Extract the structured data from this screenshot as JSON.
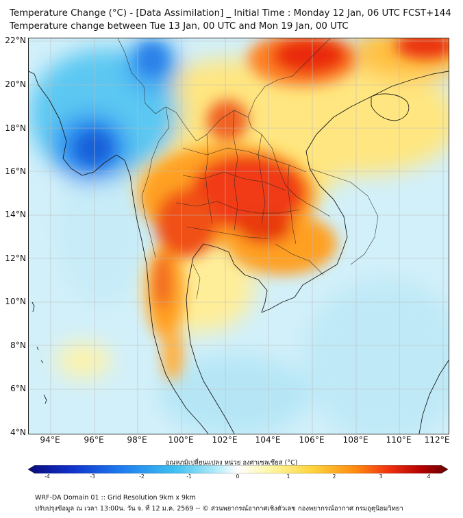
{
  "header": {
    "title_line1": "Temperature Change (°C) - [Data Assimilation] _ Initial Time : Monday 12 Jan, 06 UTC FCST+144",
    "title_line2": "Temperature change between Tue 13 Jan, 00 UTC and Mon 19 Jan, 00 UTC"
  },
  "axes": {
    "lat_labels": [
      "22°N",
      "20°N",
      "18°N",
      "16°N",
      "14°N",
      "12°N",
      "10°N",
      "8°N",
      "6°N",
      "4°N"
    ],
    "lon_labels": [
      "94°E",
      "96°E",
      "98°E",
      "100°E",
      "102°E",
      "104°E",
      "106°E",
      "108°E",
      "110°E",
      "112°E"
    ]
  },
  "colorbar": {
    "title": "อุณหภูมิเปลี่ยนแปลง หน่วย องศาเซลเซียส (°C)",
    "ticks": [
      "-4",
      "-3",
      "-2",
      "-1",
      "0",
      "1",
      "2",
      "3",
      "4"
    ],
    "colors": {
      "cold_extreme": "#0a0a7a",
      "cold": "#1e7bf0",
      "cool": "#8fdff5",
      "neutral": "#ffffff",
      "warm": "#ffe45c",
      "hot": "#ff5a00",
      "hot_extreme": "#6b0000"
    }
  },
  "footer": {
    "line1": "WRF-DA Domain 01 :: Grid Resolution 9km x 9km",
    "line2": "ปรับปรุงข้อมูล ณ เวลา 13:00น. วัน จ. ที่ 12 ม.ค. 2569 -- © ส่วนพยากรณ์อากาศเชิงตัวเลข กองพยากรณ์อากาศ กรมอุตุนิยมวิทยา"
  }
}
